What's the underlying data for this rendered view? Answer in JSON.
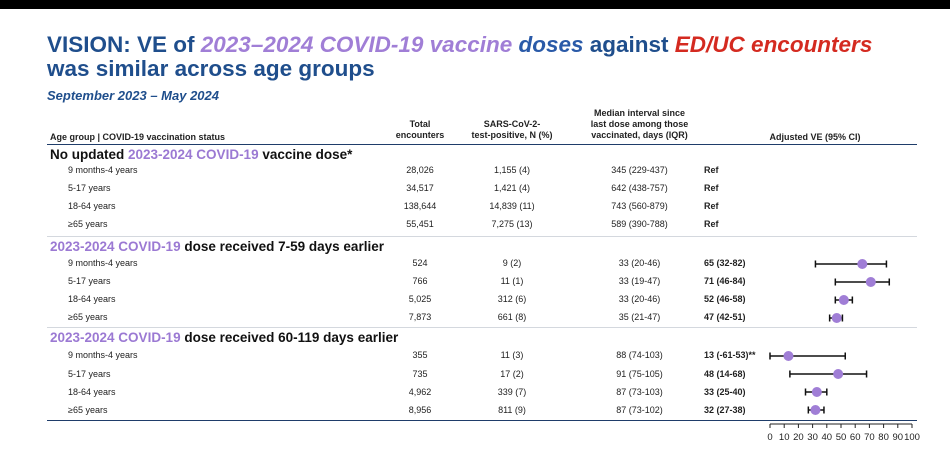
{
  "title": {
    "part1": "VISION: VE of ",
    "part2": "2023–2024 COVID-19 vaccine",
    "part3": " doses",
    "part4": " against ",
    "part5": "ED/UC encounters",
    "line2": "was similar across age groups"
  },
  "subtitle": "September 2023 – May 2024",
  "headers": {
    "group": "Age group | COVID-19 vaccination status",
    "total": [
      "Total",
      "encounters"
    ],
    "positive": [
      "SARS-CoV-2-",
      "test-positive, N (%)"
    ],
    "interval": [
      "Median interval since",
      "last dose among those",
      "vaccinated, days (IQR)"
    ],
    "ve": "Adjusted VE (95% CI)"
  },
  "sections": [
    {
      "label_a": "No updated ",
      "label_b": "2023-2024 COVID-19",
      "label_c": " vaccine dose*"
    },
    {
      "label_a": "",
      "label_b": "2023-2024 COVID-19",
      "label_c": " dose received 7-59 days earlier"
    },
    {
      "label_a": "",
      "label_b": "2023-2024 COVID-19",
      "label_c": " dose received 60-119 days earlier"
    }
  ],
  "rows": [
    [
      "9 months-4 years",
      "28,026",
      "1,155 (4)",
      "345 (229-437)",
      "Ref"
    ],
    [
      "5-17 years",
      "34,517",
      "1,421 (4)",
      "642 (438-757)",
      "Ref"
    ],
    [
      "18-64 years",
      "138,644",
      "14,839 (11)",
      "743 (560-879)",
      "Ref"
    ],
    [
      "≥65 years",
      "55,451",
      "7,275 (13)",
      "589 (390-788)",
      "Ref"
    ],
    [
      "9 months-4 years",
      "524",
      "9 (2)",
      "33 (20-46)",
      "65 (32-82)"
    ],
    [
      "5-17 years",
      "766",
      "11 (1)",
      "33 (19-47)",
      "71 (46-84)"
    ],
    [
      "18-64 years",
      "5,025",
      "312 (6)",
      "33 (20-46)",
      "52 (46-58)"
    ],
    [
      "≥65 years",
      "7,873",
      "661 (8)",
      "35 (21-47)",
      "47 (42-51)"
    ],
    [
      "9 months-4 years",
      "355",
      "11 (3)",
      "88 (74-103)",
      "13 (-61-53)**"
    ],
    [
      "5-17 years",
      "735",
      "17 (2)",
      "91 (75-105)",
      "48 (14-68)"
    ],
    [
      "18-64 years",
      "4,962",
      "339 (7)",
      "87 (73-103)",
      "33 (25-40)"
    ],
    [
      "≥65 years",
      "8,956",
      "811 (9)",
      "87 (73-102)",
      "32 (27-38)"
    ]
  ],
  "chart_data": {
    "type": "scatter",
    "xlim": [
      0,
      100
    ],
    "xticks": [
      0,
      10,
      20,
      30,
      40,
      50,
      60,
      70,
      80,
      90,
      100
    ],
    "marker_color": "#a07ed6",
    "points": [
      {
        "row": 4,
        "ve": 65,
        "lo": 32,
        "hi": 82
      },
      {
        "row": 5,
        "ve": 71,
        "lo": 46,
        "hi": 84
      },
      {
        "row": 6,
        "ve": 52,
        "lo": 46,
        "hi": 58
      },
      {
        "row": 7,
        "ve": 47,
        "lo": 42,
        "hi": 51
      },
      {
        "row": 8,
        "ve": 13,
        "lo": 0,
        "hi": 53
      },
      {
        "row": 9,
        "ve": 48,
        "lo": 14,
        "hi": 68
      },
      {
        "row": 10,
        "ve": 33,
        "lo": 25,
        "hi": 40
      },
      {
        "row": 11,
        "ve": 32,
        "lo": 27,
        "hi": 38
      }
    ]
  }
}
